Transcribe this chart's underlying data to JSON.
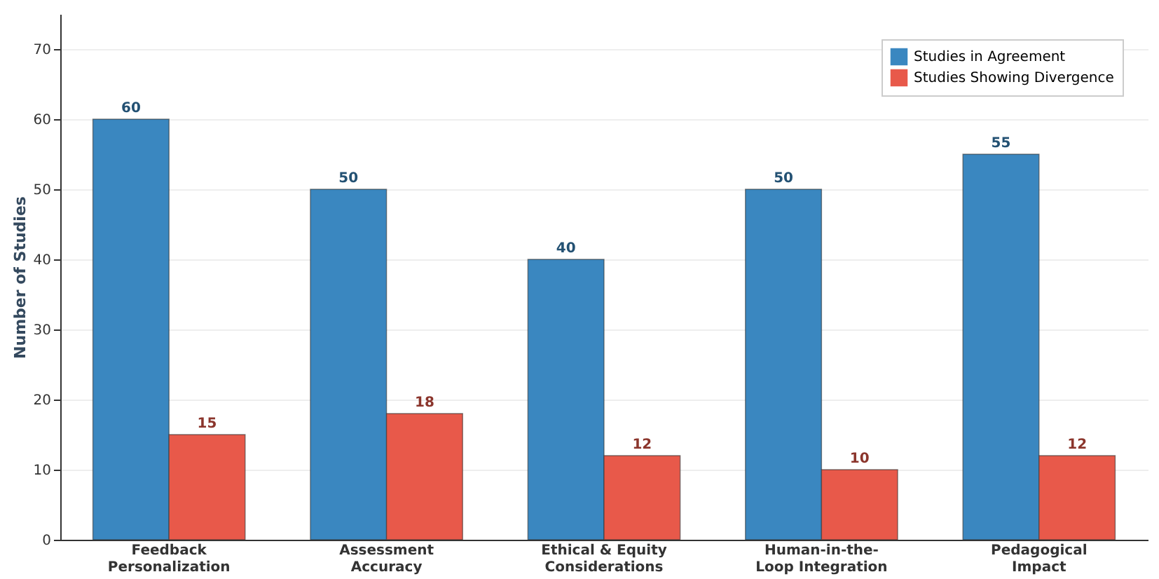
{
  "chart_data": {
    "type": "bar",
    "ylabel": "Number of Studies",
    "categories": [
      "Feedback\nPersonalization",
      "Assessment\nAccuracy",
      "Ethical & Equity\nConsiderations",
      "Human-in-the-\nLoop Integration",
      "Pedagogical\nImpact"
    ],
    "series": [
      {
        "name": "Studies in Agreement",
        "color": "#3a87c0",
        "values": [
          60,
          50,
          40,
          50,
          55
        ]
      },
      {
        "name": "Studies Showing Divergence",
        "color": "#e8594a",
        "values": [
          15,
          18,
          12,
          10,
          12
        ]
      }
    ],
    "ylim": [
      0,
      75
    ],
    "yticks": [
      0,
      10,
      20,
      30,
      40,
      50,
      60,
      70
    ],
    "grid": "y",
    "legend": "top right",
    "data_labels": true
  }
}
